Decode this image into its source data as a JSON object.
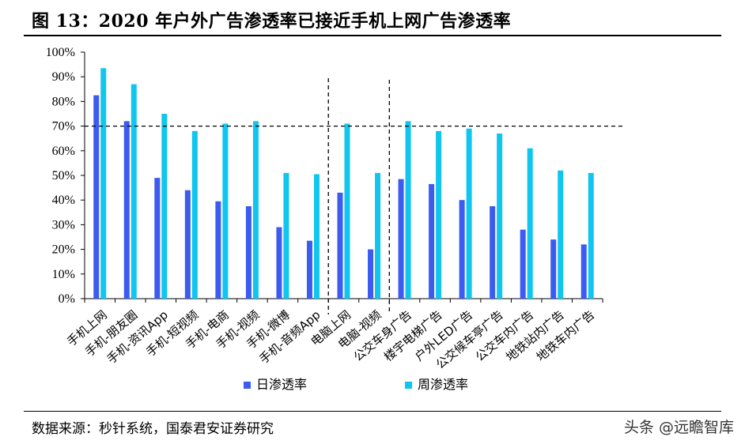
{
  "title": "图 13：2020 年户外广告渗透率已接近手机上网广告渗透率",
  "source": "数据来源：秒针系统，国泰君安证券研究",
  "watermark": "头条 @远瞻智库",
  "chart_data": {
    "type": "bar",
    "categories": [
      "手机上网",
      "手机-朋友圈",
      "手机-资讯App",
      "手机-短视频",
      "手机-电商",
      "手机-视频",
      "手机-微博",
      "手机-音频App",
      "电脑上网",
      "电脑-视频",
      "公交车身广告",
      "楼宇电梯广告",
      "户外LED广告",
      "公交候车亭广告",
      "公交车内广告",
      "地铁站内广告",
      "地铁车内广告"
    ],
    "series": [
      {
        "name": "日渗透率",
        "color": "#3c5bf0",
        "values": [
          82.5,
          72,
          49,
          44,
          39.5,
          37.5,
          29,
          23.5,
          43,
          20,
          48.5,
          46.5,
          40,
          37.5,
          28,
          24,
          22
        ]
      },
      {
        "name": "周渗透率",
        "color": "#10c6ee",
        "values": [
          93.5,
          87,
          75,
          68,
          71,
          72,
          51,
          50.5,
          71,
          51,
          72,
          68,
          69,
          67,
          61,
          52,
          51
        ]
      }
    ],
    "y_ticks": [
      "0%",
      "10%",
      "20%",
      "30%",
      "40%",
      "50%",
      "60%",
      "70%",
      "80%",
      "90%",
      "100%"
    ],
    "ylim": [
      0,
      100
    ],
    "reference_line": 70,
    "group_dividers_after": [
      "手机-音频App",
      "电脑-视频"
    ],
    "legend_position": "bottom"
  }
}
